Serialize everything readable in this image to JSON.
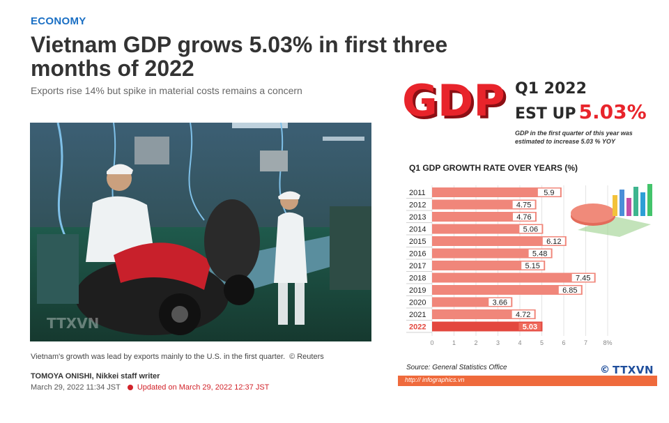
{
  "article": {
    "section": "ECONOMY",
    "headline": "Vietnam GDP grows 5.03% in first three months of 2022",
    "subhead": "Exports rise 14% but spike in material costs remains a concern",
    "caption": "Vietnam's growth was lead by exports mainly to the U.S. in the first quarter.",
    "credit": "© Reuters",
    "author": "TOMOYA ONISHI, Nikkei staff writer",
    "date": "March 29, 2022 11:34 JST",
    "updated": "Updated on March 29, 2022 12:37 JST",
    "photo_watermark": "TTXVN"
  },
  "infographic": {
    "logo_text": "GDP",
    "quarter": "Q1 2022",
    "est_prefix": "EST UP",
    "est_value": "5.03%",
    "note": "GDP in the first quarter of this year was estimated to increase 5.03 % YOY",
    "source": "Source: General Statistics Office",
    "url": "http:// infographics.vn",
    "agency_logo": "TTXVN",
    "copyright_symbol": "©"
  },
  "colors": {
    "section_blue": "#1a6fc4",
    "bar": "#f0867a",
    "bar_highlight": "#e3473e",
    "logo_red": "#e8242b",
    "url_bar": "#ef6a3c"
  },
  "chart_data": {
    "type": "bar",
    "orientation": "horizontal",
    "title": "Q1 GDP GROWTH RATE OVER YEARS (%)",
    "categories": [
      "2011",
      "2012",
      "2013",
      "2014",
      "2015",
      "2016",
      "2017",
      "2018",
      "2019",
      "2020",
      "2021",
      "2022"
    ],
    "values": [
      5.9,
      4.75,
      4.76,
      5.06,
      6.12,
      5.48,
      5.15,
      7.45,
      6.85,
      3.66,
      4.72,
      5.03
    ],
    "value_labels": [
      "5.9",
      "4.75",
      "4.76",
      "5.06",
      "6.12",
      "5.48",
      "5.15",
      "7.45",
      "6.85",
      "3.66",
      "4.72",
      "5.03"
    ],
    "highlight_category": "2022",
    "xlim": [
      0,
      8
    ],
    "x_ticks": [
      "0",
      "1",
      "2",
      "3",
      "4",
      "5",
      "6",
      "7",
      "8%"
    ],
    "grid": true
  }
}
